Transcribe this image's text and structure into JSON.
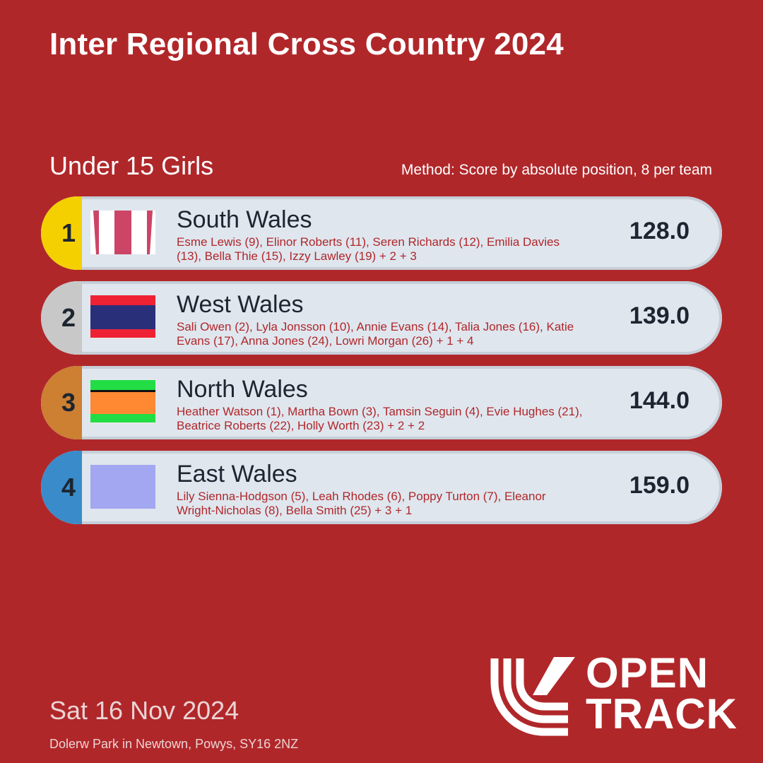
{
  "header": {
    "title": "Inter Regional Cross Country 2024"
  },
  "category": "Under 15 Girls",
  "method": "Method: Score by absolute position, 8 per team",
  "results": [
    {
      "rank": "1",
      "team": "South Wales",
      "athletes": "Esme Lewis (9), Elinor Roberts (11), Seren Richards (12), Emilia Davies (13), Bella Thie (15), Izzy Lawley (19) + 2 + 3",
      "score": "128.0",
      "rank_color": "#f5d000",
      "flag": "stripes-vertical"
    },
    {
      "rank": "2",
      "team": "West Wales",
      "athletes": "Sali Owen (2), Lyla Jonsson (10), Annie Evans (14), Talia Jones (16), Katie Evans (17), Anna Jones (24), Lowri Morgan (26) + 1 + 4",
      "score": "139.0",
      "rank_color": "#c8c8c8",
      "flag": "stripes-red-blue"
    },
    {
      "rank": "3",
      "team": "North Wales",
      "athletes": "Heather Watson (1), Martha Bown (3), Tamsin Seguin (4), Evie Hughes (21), Beatrice Roberts (22), Holly Worth (23) + 2 + 2",
      "score": "144.0",
      "rank_color": "#cd7f32",
      "flag": "stripes-green-orange"
    },
    {
      "rank": "4",
      "team": "East Wales",
      "athletes": "Lily Sienna-Hodgson (5), Leah Rhodes (6), Poppy Turton (7), Eleanor Wright-Nicholas (8), Bella Smith (25) + 3 + 1",
      "score": "159.0",
      "rank_color": "#3a8bc9",
      "flag": "solid-lavender"
    }
  ],
  "footer": {
    "date": "Sat 16 Nov 2024",
    "venue": "Dolerw Park in Newtown, Powys, SY16 2NZ",
    "logo_line1": "OPEN",
    "logo_line2": "TRACK"
  },
  "colors": {
    "background": "#b0272a",
    "card": "#dfe6ee",
    "text_dark": "#1c2530",
    "athletes_text": "#b0272a"
  }
}
